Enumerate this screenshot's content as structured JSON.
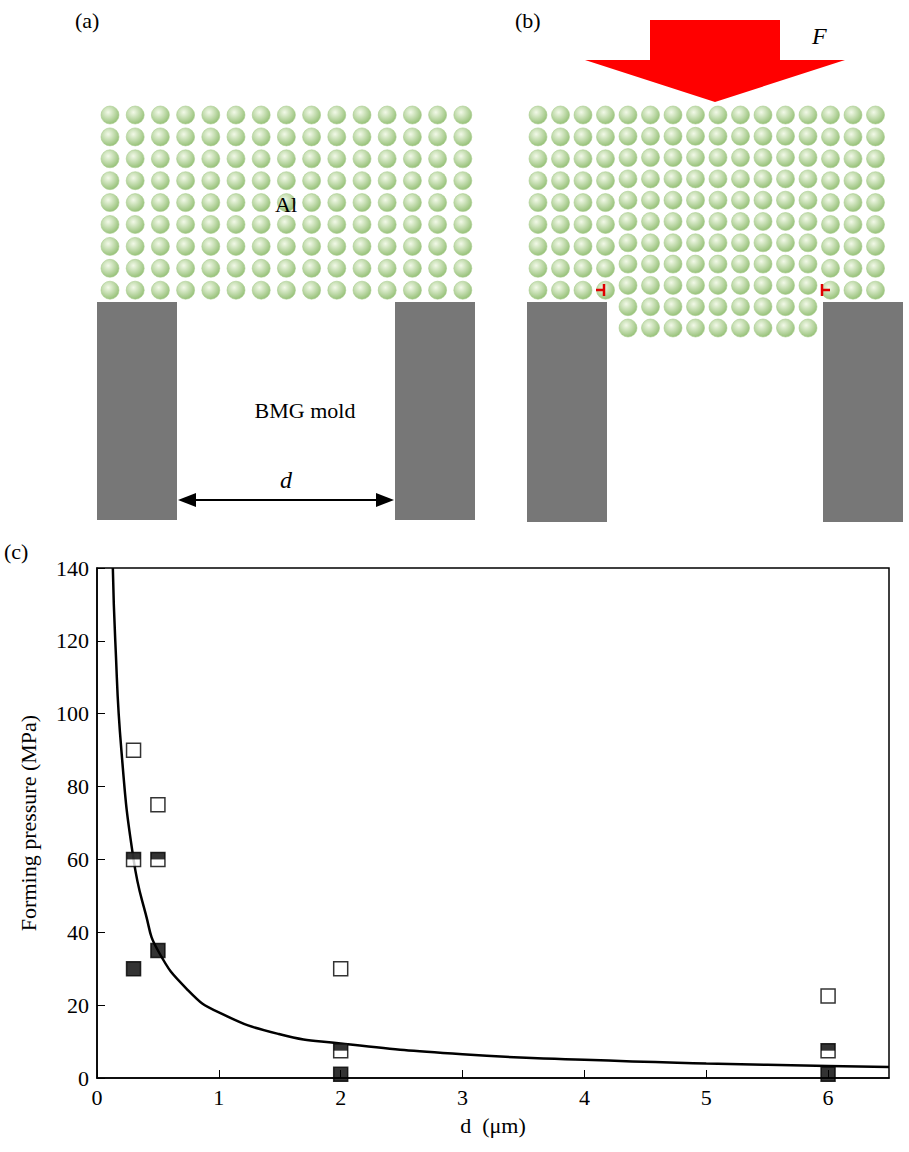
{
  "diagrams": {
    "a": {
      "label": "(a)",
      "material": "Al",
      "mold": "BMG mold",
      "gap": "d"
    },
    "b": {
      "label": "(b)",
      "force": "F"
    }
  },
  "chart_data": {
    "type": "scatter",
    "panel": "(c)",
    "x_label": "d  (μm)",
    "y_label": "Forming pressure (MPa)",
    "xlim": [
      0,
      6.5
    ],
    "xticks": [
      0,
      1,
      2,
      3,
      4,
      5,
      6
    ],
    "ylim": [
      0,
      140
    ],
    "yticks": [
      0,
      20,
      40,
      60,
      80,
      100,
      120,
      140
    ],
    "grid": false,
    "series": [
      {
        "type": "scatter",
        "marker": "square-open",
        "color": "#000000",
        "x": [
          0.3,
          0.5,
          2,
          6
        ],
        "values": [
          90,
          75,
          30,
          22.5
        ]
      },
      {
        "type": "scatter",
        "marker": "square-half",
        "color": "#000000",
        "x": [
          0.3,
          0.5,
          2,
          6
        ],
        "values": [
          60,
          60,
          7.5,
          7.5
        ]
      },
      {
        "type": "scatter",
        "marker": "square-filled",
        "color": "#000000",
        "x": [
          0.3,
          0.5,
          2,
          6
        ],
        "values": [
          30,
          35,
          1,
          1
        ]
      },
      {
        "type": "line",
        "line_style": "solid",
        "color": "#000000",
        "x": [
          0.13,
          0.15,
          0.2,
          0.3,
          0.4,
          0.5,
          0.75,
          1,
          1.5,
          2,
          3,
          4,
          5,
          6,
          6.5
        ],
        "values": [
          140,
          120,
          90,
          60,
          45,
          35,
          24,
          18,
          12,
          9.5,
          6.5,
          5,
          4,
          3.3,
          3
        ]
      }
    ]
  }
}
